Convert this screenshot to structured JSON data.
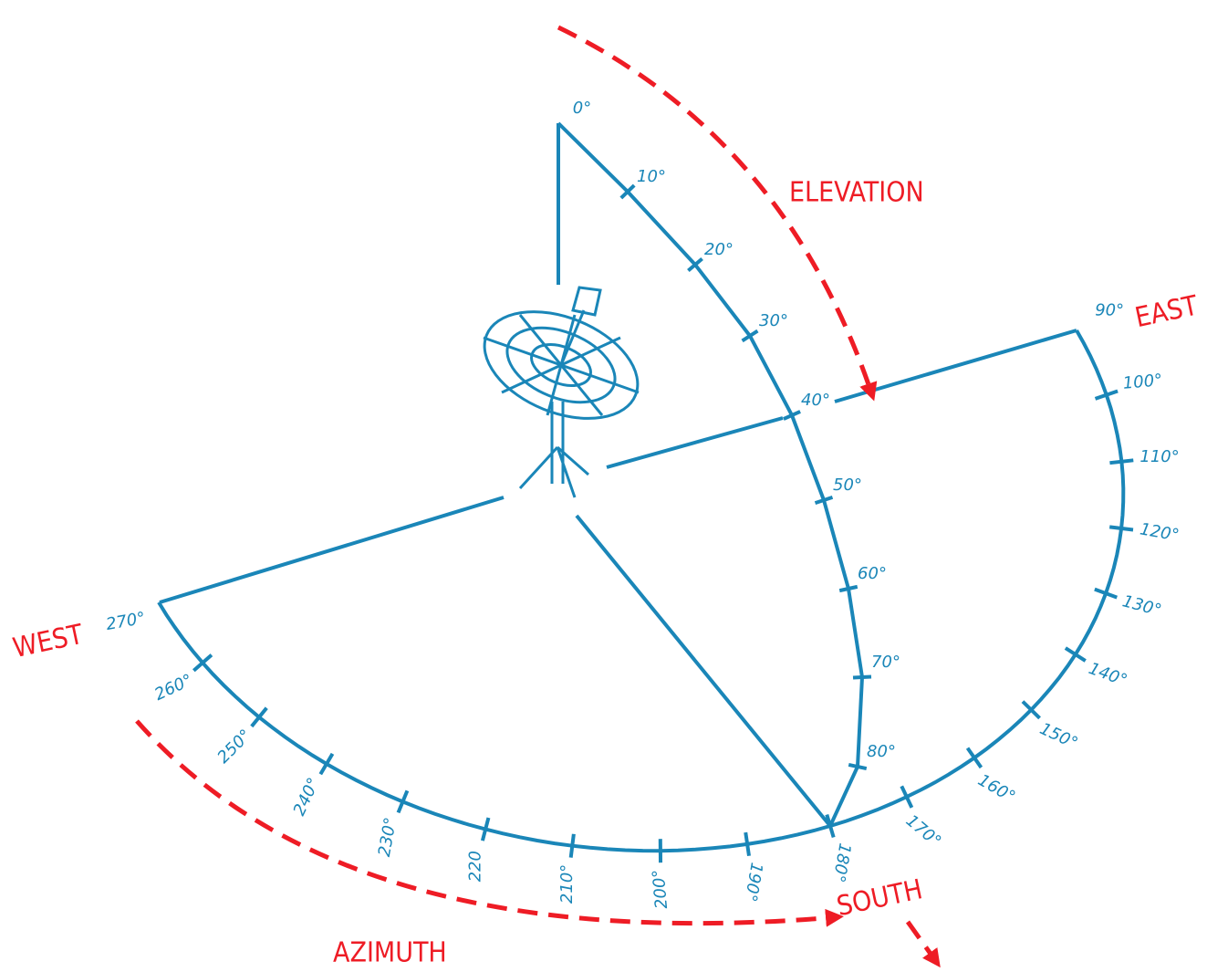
{
  "labels": {
    "elevation": "ELEVATION",
    "east": "EAST",
    "west": "WEST",
    "south": "SOUTH",
    "azimuth": "AZIMUTH"
  },
  "elevation_ticks": [
    "0°",
    "10°",
    "20°",
    "30°",
    "40°",
    "50°",
    "60°",
    "70°",
    "80°"
  ],
  "azimuth_ticks": [
    "90°",
    "100°",
    "110°",
    "120°",
    "130°",
    "140°",
    "150°",
    "160°",
    "170°",
    "180°",
    "190°",
    "200°",
    "210°",
    "220",
    "230°",
    "240°",
    "250°",
    "260°",
    "270°"
  ]
}
